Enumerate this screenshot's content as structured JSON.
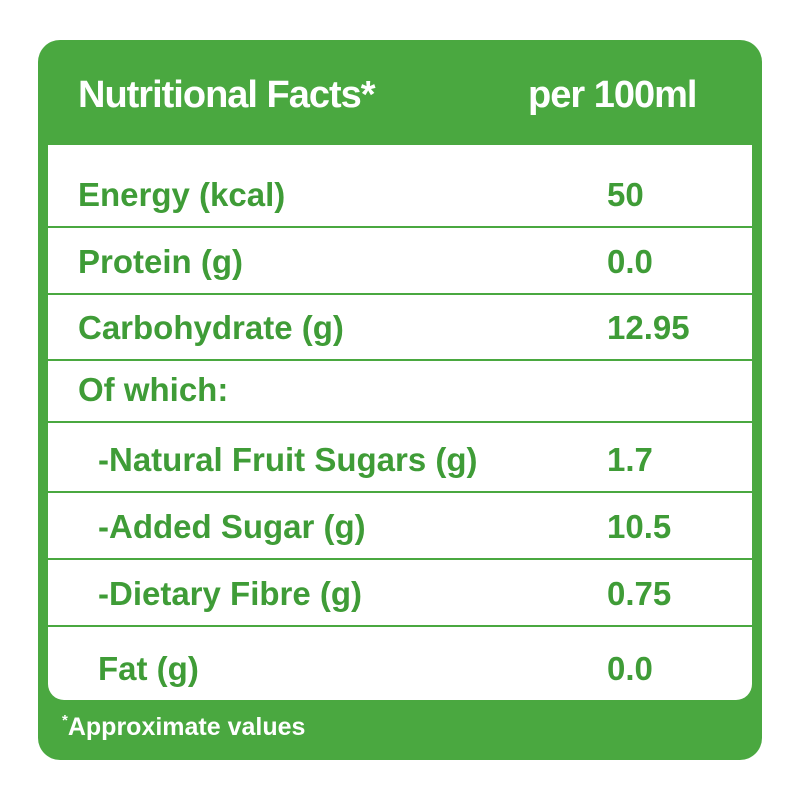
{
  "header": {
    "title": "Nutritional Facts*",
    "unit": "per 100ml"
  },
  "table": {
    "rows": [
      {
        "label": "Energy (kcal)",
        "value": "50"
      },
      {
        "label": "Protein (g)",
        "value": "0.0"
      },
      {
        "label": "Carbohydrate (g)",
        "value": "12.95"
      },
      {
        "label": "Of which:"
      },
      {
        "label": "-Natural Fruit Sugars (g)",
        "value": "1.7"
      },
      {
        "label": "-Added Sugar (g)",
        "value": "10.5"
      },
      {
        "label": "-Dietary Fibre (g)",
        "value": "0.75"
      },
      {
        "label": "Fat (g)",
        "value": "0.0"
      }
    ]
  },
  "footnote": {
    "mark": "*",
    "text": "Approximate values"
  }
}
